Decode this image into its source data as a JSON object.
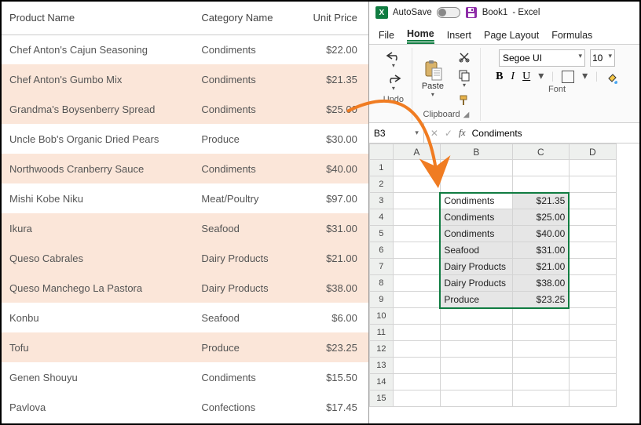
{
  "left_table": {
    "headers": [
      "Product Name",
      "Category Name",
      "Unit Price"
    ],
    "rows": [
      {
        "name": "Chef Anton's Cajun Seasoning",
        "cat": "Condiments",
        "price": "$22.00",
        "hl": false
      },
      {
        "name": "Chef Anton's Gumbo Mix",
        "cat": "Condiments",
        "price": "$21.35",
        "hl": true
      },
      {
        "name": "Grandma's Boysenberry Spread",
        "cat": "Condiments",
        "price": "$25.00",
        "hl": true
      },
      {
        "name": "Uncle Bob's Organic Dried Pears",
        "cat": "Produce",
        "price": "$30.00",
        "hl": false
      },
      {
        "name": "Northwoods Cranberry Sauce",
        "cat": "Condiments",
        "price": "$40.00",
        "hl": true
      },
      {
        "name": "Mishi Kobe Niku",
        "cat": "Meat/Poultry",
        "price": "$97.00",
        "hl": false
      },
      {
        "name": "Ikura",
        "cat": "Seafood",
        "price": "$31.00",
        "hl": true
      },
      {
        "name": "Queso Cabrales",
        "cat": "Dairy Products",
        "price": "$21.00",
        "hl": true
      },
      {
        "name": "Queso Manchego La Pastora",
        "cat": "Dairy Products",
        "price": "$38.00",
        "hl": true
      },
      {
        "name": "Konbu",
        "cat": "Seafood",
        "price": "$6.00",
        "hl": false
      },
      {
        "name": "Tofu",
        "cat": "Produce",
        "price": "$23.25",
        "hl": true
      },
      {
        "name": "Genen Shouyu",
        "cat": "Condiments",
        "price": "$15.50",
        "hl": false
      },
      {
        "name": "Pavlova",
        "cat": "Confections",
        "price": "$17.45",
        "hl": false
      }
    ]
  },
  "excel": {
    "autosave_label": "AutoSave",
    "filename": "Book1",
    "app_suffix": "  -  Excel",
    "tabs": [
      "File",
      "Home",
      "Insert",
      "Page Layout",
      "Formulas"
    ],
    "active_tab": "Home",
    "ribbon": {
      "undo_label": "Undo",
      "clipboard_label": "Clipboard",
      "paste_label": "Paste",
      "font_label": "Font",
      "font_name": "Segoe UI",
      "font_size": "10"
    },
    "formula_bar": {
      "cell_ref": "B3",
      "value": "Condiments"
    },
    "columns": [
      "A",
      "B",
      "C",
      "D"
    ],
    "row_count": 15,
    "selection": {
      "r1": 3,
      "r2": 9,
      "c1": "B",
      "c2": "C"
    },
    "pasted": [
      {
        "row": 3,
        "b": "Condiments",
        "c": "$21.35"
      },
      {
        "row": 4,
        "b": "Condiments",
        "c": "$25.00"
      },
      {
        "row": 5,
        "b": "Condiments",
        "c": "$40.00"
      },
      {
        "row": 6,
        "b": "Seafood",
        "c": "$31.00"
      },
      {
        "row": 7,
        "b": "Dairy Products",
        "c": "$21.00"
      },
      {
        "row": 8,
        "b": "Dairy Products",
        "c": "$38.00"
      },
      {
        "row": 9,
        "b": "Produce",
        "c": "$23.25"
      }
    ]
  },
  "colors": {
    "highlight": "#fbe6d9",
    "excel_green": "#107c41",
    "arrow": "#f07c22"
  }
}
